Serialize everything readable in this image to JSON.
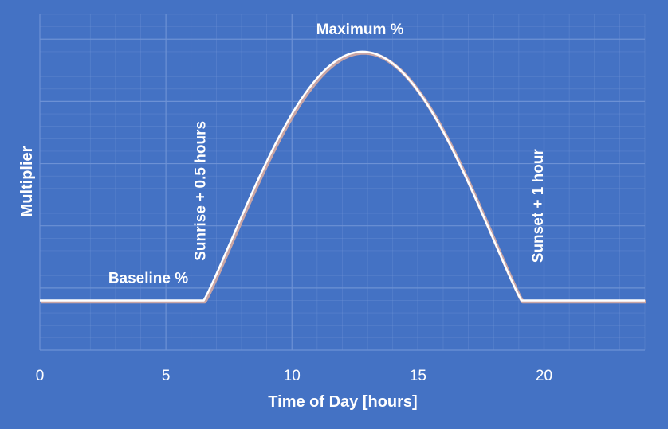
{
  "chart_data": {
    "type": "line",
    "title": "",
    "xlabel": "Time of Day [hours]",
    "ylabel": "Multiplier",
    "xlim": [
      0,
      24
    ],
    "ylim": [
      0,
      1.35
    ],
    "grid": true,
    "x_ticks": [
      "0",
      "5",
      "10",
      "15",
      "20"
    ],
    "series": [
      {
        "x": [
          0,
          6.5,
          12.8,
          19.1,
          24
        ],
        "y": [
          0.2,
          0.2,
          1.2,
          0.2,
          0.2
        ]
      }
    ],
    "annotations": [
      {
        "id": "baseline",
        "text": "Baseline %",
        "x": 4.3,
        "y": 0.27,
        "rotate": false
      },
      {
        "id": "maximum",
        "text": "Maximum %",
        "x": 12.7,
        "y": 1.27,
        "rotate": false
      },
      {
        "id": "sunrise",
        "text": "Sunrise + 0.5 hours",
        "x": 6.4,
        "y": 0.64,
        "rotate": true
      },
      {
        "id": "sunset",
        "text": "Sunset + 1 hour",
        "x": 19.8,
        "y": 0.58,
        "rotate": true
      }
    ],
    "colors": {
      "background": "#4472c4",
      "line": "#ffffff",
      "line_shadow": "#c9a5a5",
      "grid": "#6f93d6"
    }
  }
}
